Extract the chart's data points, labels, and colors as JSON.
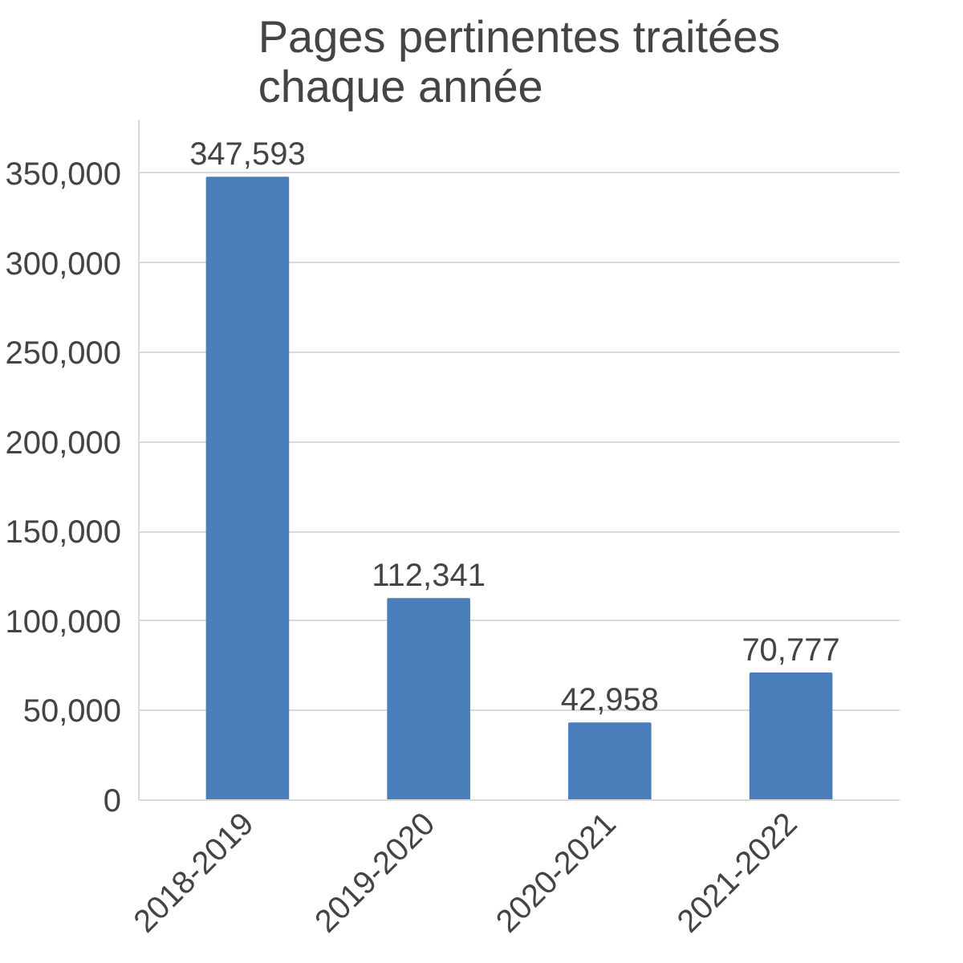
{
  "chart_data": {
    "type": "bar",
    "title": "Pages pertinentes traitées chaque année",
    "categories": [
      "2018-2019",
      "2019-2020",
      "2020-2021",
      "2021-2022"
    ],
    "values": [
      347593,
      112341,
      42958,
      70777
    ],
    "value_labels": [
      "347,593",
      "112,341",
      "42,958",
      "70,777"
    ],
    "color": "#4a7ebb",
    "ylim": [
      0,
      380000
    ],
    "yticks": [
      0,
      {
        "value": 50000,
        "label": "50,000"
      },
      {
        "value": 100000,
        "label": "100,000"
      },
      {
        "value": 150000,
        "label": "150,000"
      },
      {
        "value": 200000,
        "label": "200,000"
      },
      {
        "value": 250000,
        "label": "250,000"
      },
      {
        "value": 300000,
        "label": "300,000"
      },
      {
        "value": 350000,
        "label": "350,000"
      }
    ],
    "grid": "y"
  }
}
